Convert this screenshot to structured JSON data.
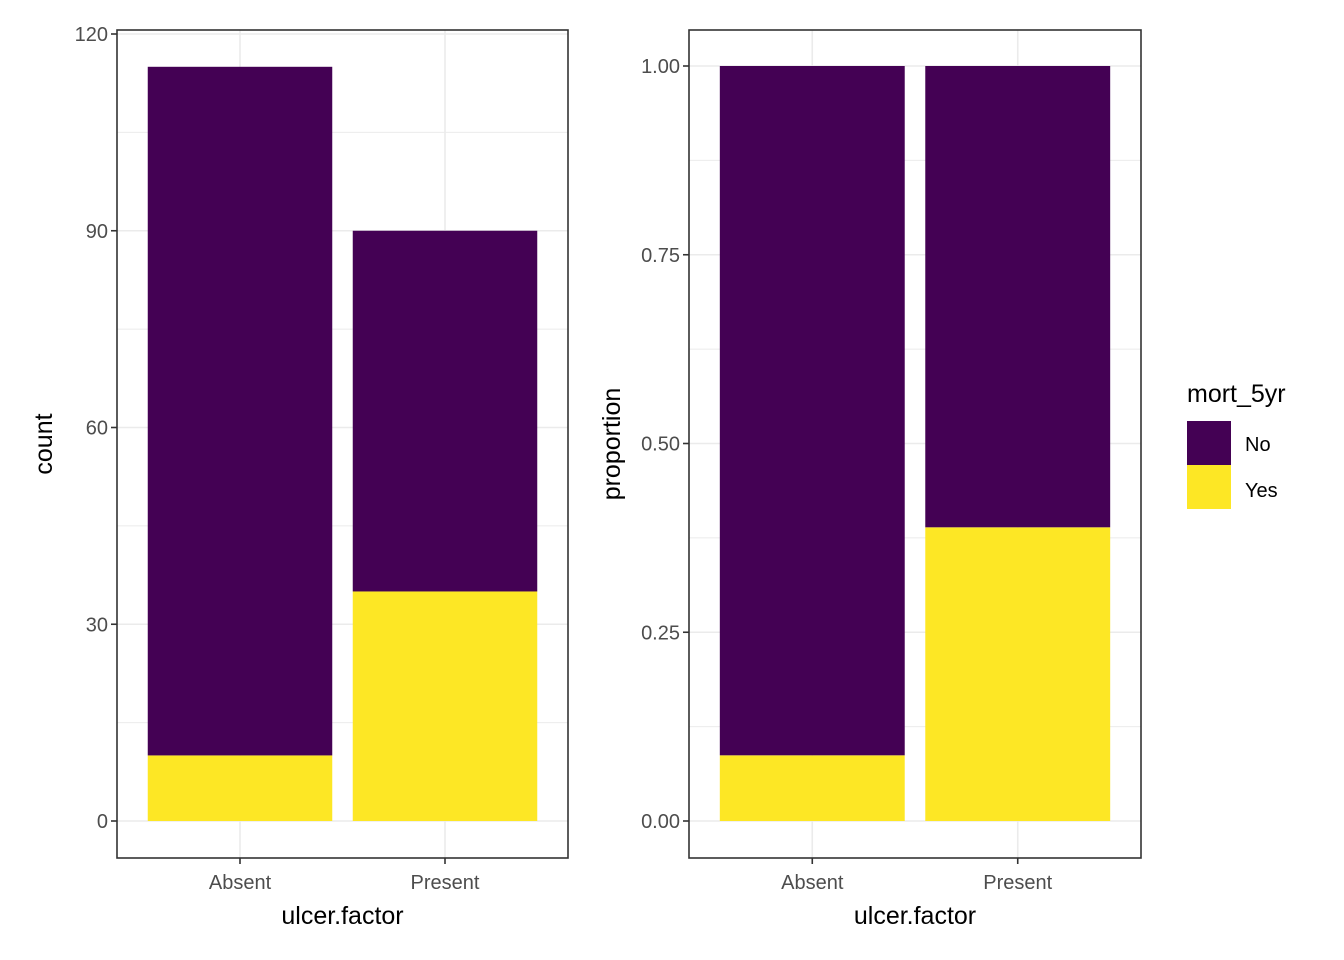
{
  "legend": {
    "title": "mort_5yr",
    "items": [
      {
        "label": "No",
        "color": "#440154"
      },
      {
        "label": "Yes",
        "color": "#FDE725"
      }
    ]
  },
  "chart_data": [
    {
      "type": "bar",
      "stacked": true,
      "categories": [
        "Absent",
        "Present"
      ],
      "series": [
        {
          "name": "No",
          "values": [
            105,
            55
          ]
        },
        {
          "name": "Yes",
          "values": [
            10,
            35
          ]
        }
      ],
      "xlabel": "ulcer.factor",
      "ylabel": "count",
      "ylim": [
        0,
        120
      ],
      "yticks": [
        0,
        30,
        60,
        90,
        120
      ],
      "ytick_labels": [
        "0",
        "30",
        "60",
        "90",
        "120"
      ],
      "grid": true
    },
    {
      "type": "bar",
      "stacked": true,
      "position": "fill",
      "categories": [
        "Absent",
        "Present"
      ],
      "series": [
        {
          "name": "No",
          "values": [
            0.913,
            0.611
          ]
        },
        {
          "name": "Yes",
          "values": [
            0.087,
            0.389
          ]
        }
      ],
      "xlabel": "ulcer.factor",
      "ylabel": "proportion",
      "ylim": [
        0,
        1.0
      ],
      "yticks": [
        0,
        0.25,
        0.5,
        0.75,
        1.0
      ],
      "ytick_labels": [
        "0.00",
        "0.25",
        "0.50",
        "0.75",
        "1.00"
      ],
      "grid": true
    }
  ]
}
